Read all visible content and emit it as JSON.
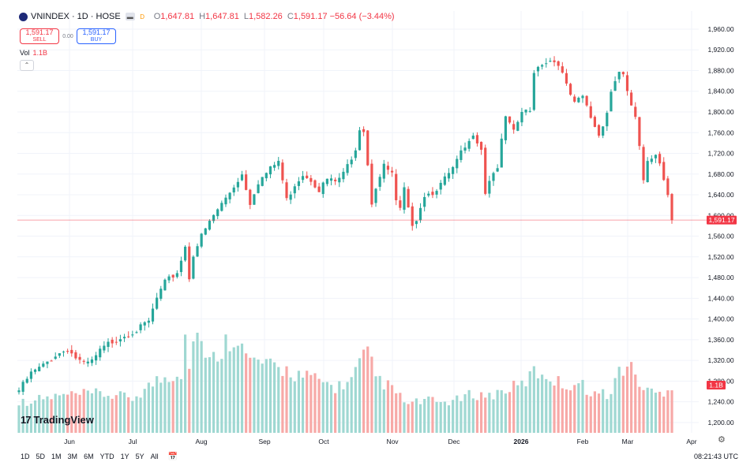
{
  "header": {
    "symbol": "VNINDEX · 1D · HOSE",
    "badge_d": "D",
    "o_label": "O",
    "o_value": "1,647.81",
    "h_label": "H",
    "h_value": "1,647.81",
    "l_label": "L",
    "l_value": "1,582.26",
    "c_label": "C",
    "c_value": "1,591.17",
    "change": "−56.64 (−3.44%)"
  },
  "trade": {
    "sell_price": "1,591.17",
    "sell_label": "SELL",
    "spread": "0.00",
    "buy_price": "1,591.17",
    "buy_label": "BUY"
  },
  "volume_legend": {
    "label": "Vol",
    "value": "1.1B"
  },
  "branding": {
    "logo": "17",
    "name": "TradingView"
  },
  "timeframes": [
    "1D",
    "5D",
    "1M",
    "3M",
    "6M",
    "YTD",
    "1Y",
    "5Y",
    "All"
  ],
  "clock": "08:21:43 UTC",
  "colors": {
    "up": "#26a69a",
    "down": "#ef5350",
    "vol_up": "#9fd8d2",
    "vol_down": "#f7a9a7",
    "price_line": "#f23645",
    "grid": "#f0f3fa"
  },
  "icons": {
    "logo": "vnindex-logo-icon",
    "collapse": "chevron-up-icon",
    "calendar": "calendar-icon",
    "settings": "gear-icon"
  },
  "chart_data": {
    "type": "candlestick",
    "y_axis_ticks": [
      "1,200.00",
      "1,240.00",
      "1,280.00",
      "1,320.00",
      "1,360.00",
      "1,400.00",
      "1,440.00",
      "1,480.00",
      "1,520.00",
      "1,560.00",
      "1,600.00",
      "1,640.00",
      "1,680.00",
      "1,720.00",
      "1,760.00",
      "1,800.00",
      "1,840.00",
      "1,880.00",
      "1,920.00",
      "1,960.00"
    ],
    "ylim": [
      1180,
      1995
    ],
    "x_axis_labels": [
      "Jun",
      "Jul",
      "Aug",
      "Sep",
      "Oct",
      "Nov",
      "Dec",
      "2026",
      "Feb",
      "Mar",
      "Apr"
    ],
    "last_price_label": "1,591.17",
    "last_price": 1591.17,
    "volume_label": "1.1B",
    "volume_last": 1.1,
    "price_path": [
      [
        0,
        1262
      ],
      [
        3,
        1295
      ],
      [
        6,
        1310
      ],
      [
        9,
        1330
      ],
      [
        12,
        1342
      ],
      [
        14,
        1325
      ],
      [
        16,
        1312
      ],
      [
        18,
        1318
      ],
      [
        20,
        1338
      ],
      [
        22,
        1352
      ],
      [
        25,
        1365
      ],
      [
        27,
        1372
      ],
      [
        29,
        1378
      ],
      [
        32,
        1395
      ],
      [
        34,
        1440
      ],
      [
        36,
        1470
      ],
      [
        39,
        1490
      ],
      [
        40,
        1515
      ],
      [
        41,
        1540
      ],
      [
        42,
        1480
      ],
      [
        43,
        1525
      ],
      [
        45,
        1560
      ],
      [
        48,
        1600
      ],
      [
        52,
        1645
      ],
      [
        55,
        1680
      ],
      [
        57,
        1625
      ],
      [
        59,
        1665
      ],
      [
        62,
        1690
      ],
      [
        64,
        1705
      ],
      [
        66,
        1630
      ],
      [
        68,
        1660
      ],
      [
        70,
        1680
      ],
      [
        72,
        1670
      ],
      [
        74,
        1650
      ],
      [
        76,
        1670
      ],
      [
        78,
        1665
      ],
      [
        80,
        1680
      ],
      [
        83,
        1730
      ],
      [
        84,
        1770
      ],
      [
        85,
        1765
      ],
      [
        86,
        1700
      ],
      [
        87,
        1625
      ],
      [
        88,
        1655
      ],
      [
        90,
        1695
      ],
      [
        92,
        1680
      ],
      [
        93,
        1625
      ],
      [
        94,
        1610
      ],
      [
        95,
        1650
      ],
      [
        96,
        1610
      ],
      [
        97,
        1585
      ],
      [
        98,
        1595
      ],
      [
        100,
        1640
      ],
      [
        102,
        1645
      ],
      [
        104,
        1660
      ],
      [
        107,
        1690
      ],
      [
        109,
        1720
      ],
      [
        111,
        1740
      ],
      [
        112,
        1760
      ],
      [
        114,
        1730
      ],
      [
        115,
        1645
      ],
      [
        116,
        1670
      ],
      [
        118,
        1695
      ],
      [
        120,
        1790
      ],
      [
        122,
        1760
      ],
      [
        124,
        1800
      ],
      [
        126,
        1800
      ],
      [
        127,
        1880
      ],
      [
        129,
        1895
      ],
      [
        131,
        1900
      ],
      [
        133,
        1895
      ],
      [
        135,
        1850
      ],
      [
        137,
        1815
      ],
      [
        139,
        1830
      ],
      [
        141,
        1790
      ],
      [
        143,
        1755
      ],
      [
        145,
        1800
      ],
      [
        146,
        1840
      ],
      [
        148,
        1880
      ],
      [
        149,
        1870
      ],
      [
        150,
        1835
      ],
      [
        152,
        1790
      ],
      [
        153,
        1730
      ],
      [
        154,
        1665
      ],
      [
        155,
        1700
      ],
      [
        157,
        1720
      ],
      [
        158,
        1705
      ],
      [
        160,
        1640
      ],
      [
        161,
        1591.17
      ]
    ],
    "volume_path": [
      [
        0,
        0.7
      ],
      [
        10,
        0.85
      ],
      [
        20,
        0.9
      ],
      [
        28,
        0.8
      ],
      [
        34,
        1.2
      ],
      [
        38,
        1.35
      ],
      [
        40,
        1.4
      ],
      [
        41,
        2.5
      ],
      [
        42,
        1.5
      ],
      [
        44,
        2.6
      ],
      [
        46,
        1.6
      ],
      [
        48,
        1.7
      ],
      [
        52,
        2.2
      ],
      [
        54,
        2.3
      ],
      [
        56,
        1.7
      ],
      [
        60,
        1.6
      ],
      [
        62,
        1.5
      ],
      [
        66,
        1.45
      ],
      [
        70,
        1.3
      ],
      [
        74,
        1.2
      ],
      [
        78,
        1.05
      ],
      [
        82,
        1.2
      ],
      [
        84,
        1.6
      ],
      [
        86,
        1.8
      ],
      [
        88,
        1.3
      ],
      [
        92,
        1.0
      ],
      [
        96,
        0.65
      ],
      [
        100,
        0.75
      ],
      [
        104,
        0.7
      ],
      [
        108,
        0.75
      ],
      [
        112,
        0.9
      ],
      [
        116,
        0.85
      ],
      [
        120,
        1.0
      ],
      [
        124,
        1.1
      ],
      [
        127,
        1.4
      ],
      [
        130,
        1.35
      ],
      [
        134,
        1.1
      ],
      [
        138,
        1.15
      ],
      [
        142,
        0.9
      ],
      [
        146,
        0.9
      ],
      [
        148,
        1.45
      ],
      [
        150,
        1.55
      ],
      [
        152,
        1.35
      ],
      [
        154,
        1.0
      ],
      [
        156,
        0.95
      ],
      [
        158,
        0.9
      ],
      [
        160,
        1.05
      ],
      [
        161,
        1.1
      ]
    ]
  }
}
